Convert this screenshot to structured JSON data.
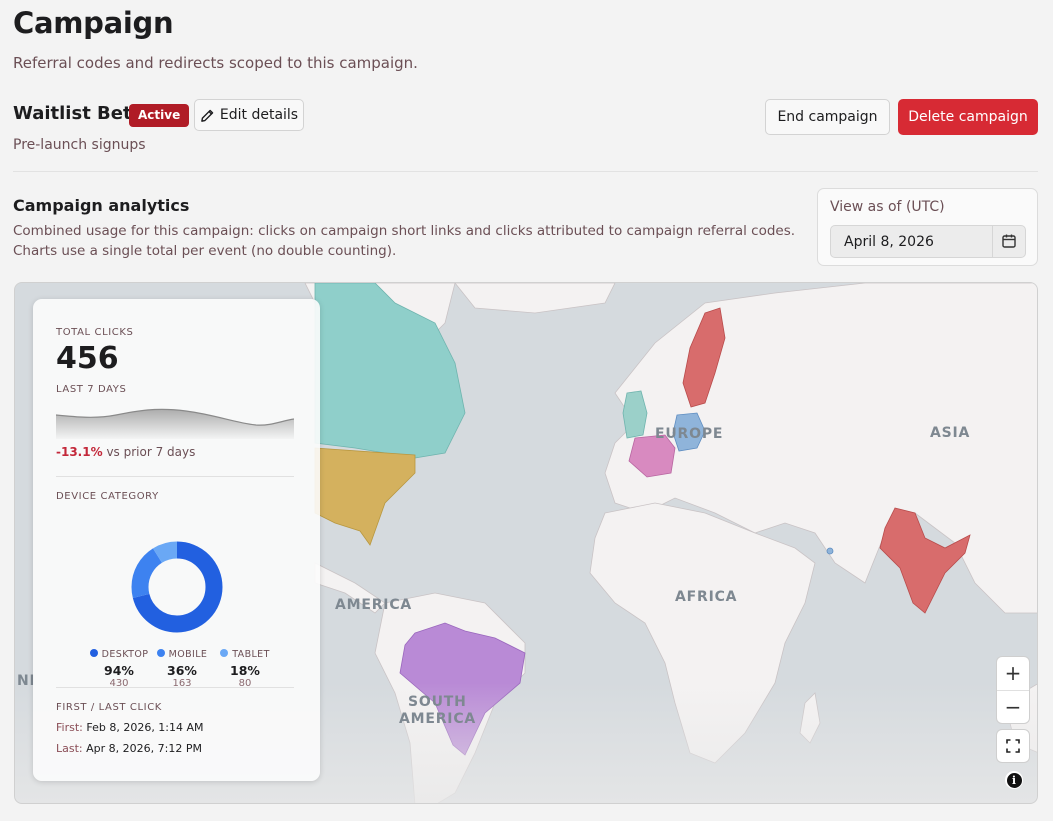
{
  "header": {
    "title": "Campaign",
    "subtitle": "Referral codes and redirects scoped to this campaign."
  },
  "campaign": {
    "name": "Waitlist Beta",
    "status": "Active",
    "status_color": "#b01c26",
    "edit_label": "Edit details",
    "description": "Pre-launch signups",
    "end_label": "End campaign",
    "delete_label": "Delete campaign",
    "delete_color": "#d72a34"
  },
  "analytics": {
    "title": "Campaign analytics",
    "description": "Combined usage for this campaign: clicks on campaign short links and clicks attributed to campaign referral codes. Charts use a single total per event (no double counting).",
    "view_as_label": "View as of (UTC)",
    "view_as_date": "April 8, 2026"
  },
  "map": {
    "labels": {
      "europe": "EUROPE",
      "asia": "ASIA",
      "africa": "AFRICA",
      "america": "AMERICA",
      "south_america_1": "SOUTH",
      "south_america_2": "AMERICA",
      "edge": "NI"
    },
    "zoom_in": "+",
    "zoom_out": "−",
    "highlight_colors": {
      "north_america": "#8fcfca",
      "usa": "#d4b15e",
      "brazil": "#b98ad6",
      "india": "#d86c6c",
      "sweden": "#d86c6c",
      "uk": "#9bd0c9",
      "germany": "#8fb4da",
      "france": "#d88ac0"
    }
  },
  "stats": {
    "total_clicks_label": "TOTAL CLICKS",
    "total_clicks": "456",
    "period_label": "LAST 7 DAYS",
    "change_value": "-13.1%",
    "change_suffix": "vs prior 7 days",
    "device_label": "DEVICE CATEGORY",
    "devices": [
      {
        "name": "DESKTOP",
        "pct": "94%",
        "count": "430",
        "color": "#2260e0",
        "share": 0.71
      },
      {
        "name": "MOBILE",
        "pct": "36%",
        "count": "163",
        "color": "#3d82f0",
        "share": 0.2
      },
      {
        "name": "TABLET",
        "pct": "18%",
        "count": "80",
        "color": "#6aa8f5",
        "share": 0.09
      }
    ],
    "first_last_label": "FIRST / LAST CLICK",
    "first_label": "First:",
    "first_value": "Feb 8, 2026, 1:14 AM",
    "last_label": "Last:",
    "last_value": "Apr 8, 2026, 7:12 PM"
  }
}
